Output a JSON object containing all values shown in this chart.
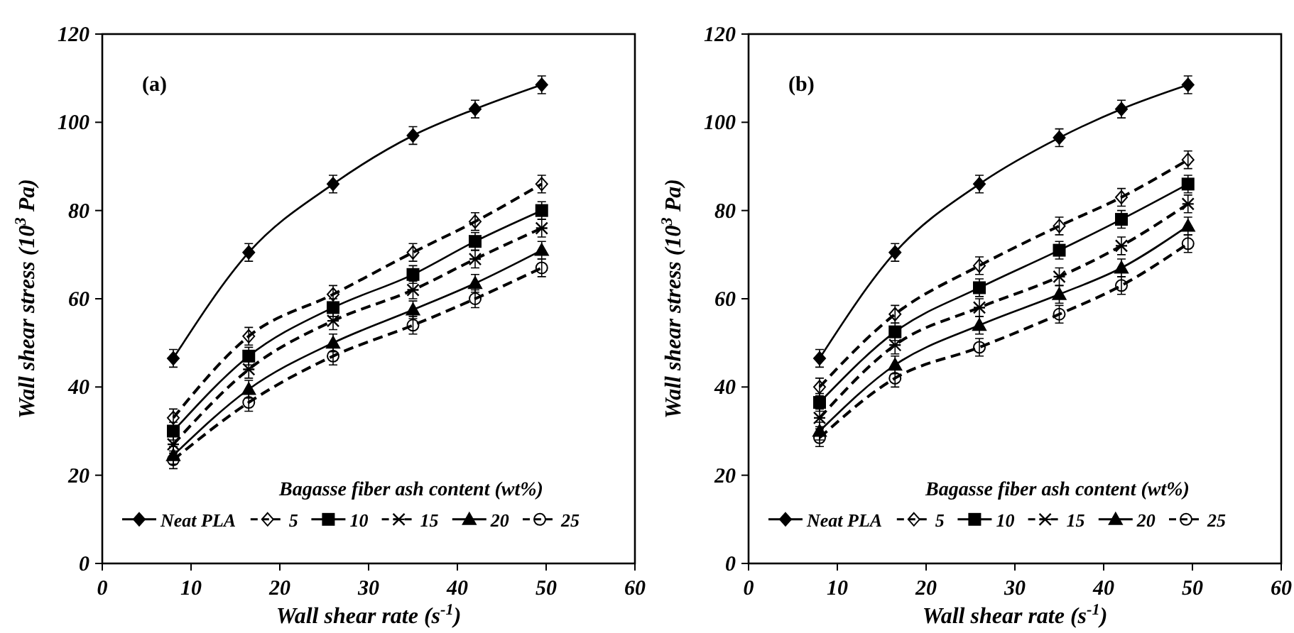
{
  "chart_data": [
    {
      "type": "line",
      "annotations": [
        "(a)"
      ],
      "xlabel": "Wall shear rate (s$^{-1}$)",
      "ylabel": "Wall shear stress (10$^{3}$ Pa)",
      "legend_title": "Bagasse fiber ash content (wt%)",
      "legend": "bottom",
      "grid": false,
      "xlim": [
        0,
        60
      ],
      "xticks": [
        0,
        10,
        20,
        30,
        40,
        50,
        60
      ],
      "ylim": [
        0,
        120
      ],
      "yticks": [
        0,
        20,
        40,
        60,
        80,
        100,
        120
      ],
      "x": [
        8,
        16.5,
        26,
        35,
        42,
        49.5
      ],
      "series": [
        {
          "name": "Neat PLA",
          "color": "#000000",
          "marker": "diamond",
          "line_style": "solid",
          "values": [
            46.5,
            70.5,
            86,
            97,
            103,
            108.5
          ],
          "errors": [
            2,
            2,
            2,
            2,
            2,
            2
          ]
        },
        {
          "name": "5",
          "color": "#000000",
          "marker": "diamond",
          "line_style": "dashed",
          "values": [
            33,
            51.5,
            61,
            70.5,
            77.5,
            86
          ],
          "errors": [
            2,
            2,
            2,
            2,
            2,
            2
          ]
        },
        {
          "name": "10",
          "color": "#000000",
          "marker": "square",
          "line_style": "solid",
          "values": [
            30,
            47,
            58,
            65.5,
            73,
            80
          ],
          "errors": [
            2,
            2,
            2,
            2,
            2,
            2
          ]
        },
        {
          "name": "15",
          "color": "#000000",
          "marker": "cross",
          "line_style": "dashed",
          "values": [
            27,
            44,
            55,
            62,
            69,
            76
          ],
          "errors": [
            2,
            2,
            2,
            2,
            2,
            2
          ]
        },
        {
          "name": "20",
          "color": "#000000",
          "marker": "triangle",
          "line_style": "solid",
          "values": [
            24.5,
            39.5,
            50,
            57.5,
            63.5,
            71
          ],
          "errors": [
            2,
            2,
            2,
            2,
            2,
            2
          ]
        },
        {
          "name": "25",
          "color": "#000000",
          "marker": "circle",
          "line_style": "dashed",
          "values": [
            23.5,
            36.5,
            47,
            54,
            60,
            67
          ],
          "errors": [
            2,
            2,
            2,
            2,
            2,
            2
          ]
        }
      ]
    },
    {
      "type": "line",
      "annotations": [
        "(b)"
      ],
      "xlabel": "Wall shear rate (s$^{-1}$)",
      "ylabel": "Wall shear stress (10$^{3}$ Pa)",
      "legend_title": "Bagasse fiber ash content (wt%)",
      "legend": "bottom",
      "grid": false,
      "xlim": [
        0,
        60
      ],
      "xticks": [
        0,
        10,
        20,
        30,
        40,
        50,
        60
      ],
      "ylim": [
        0,
        120
      ],
      "yticks": [
        0,
        20,
        40,
        60,
        80,
        100,
        120
      ],
      "x": [
        8,
        16.5,
        26,
        35,
        42,
        49.5
      ],
      "series": [
        {
          "name": "Neat PLA",
          "color": "#000000",
          "marker": "diamond",
          "line_style": "solid",
          "values": [
            46.5,
            70.5,
            86,
            96.5,
            103,
            108.5
          ],
          "errors": [
            2,
            2,
            2,
            2,
            2,
            2
          ]
        },
        {
          "name": "5",
          "color": "#000000",
          "marker": "diamond",
          "line_style": "dashed",
          "values": [
            40,
            56.5,
            67.5,
            76.5,
            83,
            91.5
          ],
          "errors": [
            2,
            2,
            2,
            2,
            2,
            2
          ]
        },
        {
          "name": "10",
          "color": "#000000",
          "marker": "square",
          "line_style": "solid",
          "values": [
            36.5,
            52.5,
            62.5,
            71,
            78,
            86
          ],
          "errors": [
            2,
            2,
            2,
            2,
            2,
            2
          ]
        },
        {
          "name": "15",
          "color": "#000000",
          "marker": "cross",
          "line_style": "dashed",
          "values": [
            33,
            49.5,
            58,
            65,
            72,
            81.5
          ],
          "errors": [
            2,
            2,
            2,
            2,
            2,
            2
          ]
        },
        {
          "name": "20",
          "color": "#000000",
          "marker": "triangle",
          "line_style": "solid",
          "values": [
            30,
            45,
            54,
            61,
            67,
            76.5
          ],
          "errors": [
            2,
            2,
            2,
            2,
            2,
            2
          ]
        },
        {
          "name": "25",
          "color": "#000000",
          "marker": "circle",
          "line_style": "dashed",
          "values": [
            28.5,
            42,
            49,
            56.5,
            63,
            72.5
          ],
          "errors": [
            2,
            2,
            2,
            2,
            2,
            2
          ]
        }
      ]
    }
  ]
}
